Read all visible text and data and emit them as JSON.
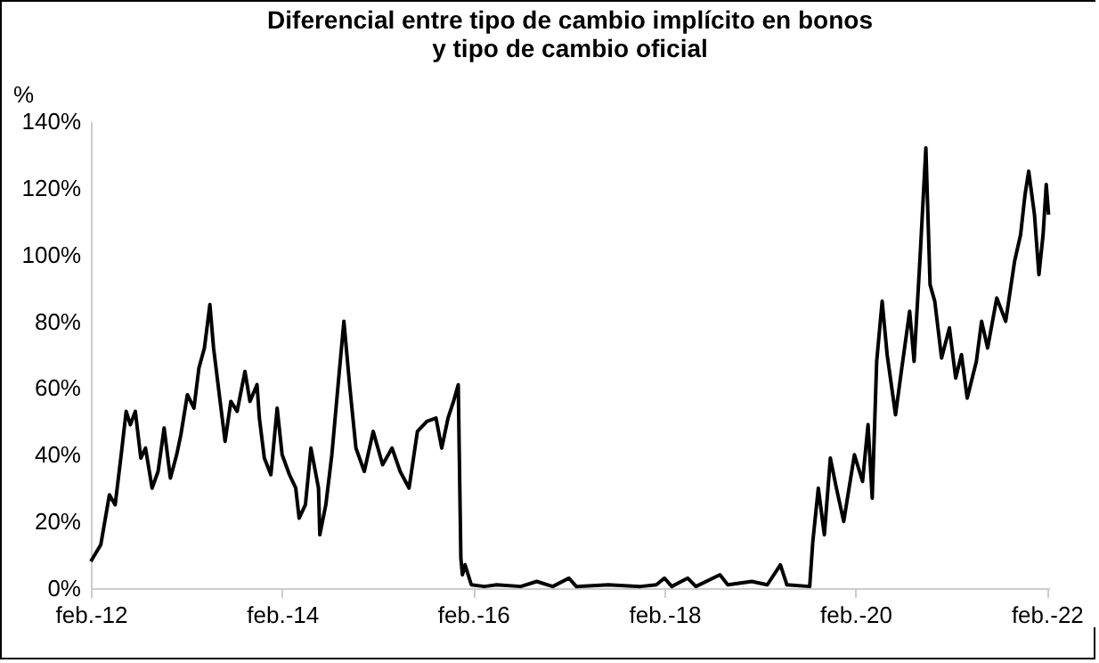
{
  "chart_data": {
    "type": "line",
    "title": "Diferencial entre tipo de cambio implícito en bonos\ny tipo de cambio oficial",
    "ylabel": "%",
    "x": [
      "2012-02-01",
      "2012-03-10",
      "2012-04-12",
      "2012-05-04",
      "2012-05-27",
      "2012-06-15",
      "2012-07-01",
      "2012-07-20",
      "2012-08-10",
      "2012-08-28",
      "2012-09-22",
      "2012-10-15",
      "2012-11-07",
      "2012-12-01",
      "2012-12-25",
      "2013-01-10",
      "2013-02-04",
      "2013-03-01",
      "2013-03-20",
      "2013-04-10",
      "2013-05-01",
      "2013-05-15",
      "2013-06-06",
      "2013-06-28",
      "2013-07-20",
      "2013-08-13",
      "2013-09-12",
      "2013-10-01",
      "2013-10-28",
      "2013-11-06",
      "2013-11-25",
      "2013-12-20",
      "2014-01-13",
      "2014-02-01",
      "2014-03-01",
      "2014-03-25",
      "2014-04-07",
      "2014-05-01",
      "2014-05-22",
      "2014-06-20",
      "2014-06-25",
      "2014-07-18",
      "2014-08-10",
      "2014-09-03",
      "2014-09-25",
      "2014-10-18",
      "2014-11-10",
      "2014-12-12",
      "2015-01-15",
      "2015-02-20",
      "2015-03-28",
      "2015-04-28",
      "2015-06-01",
      "2015-07-03",
      "2015-08-08",
      "2015-09-12",
      "2015-10-04",
      "2015-10-28",
      "2015-11-18",
      "2015-12-06",
      "2015-12-16",
      "2015-12-22",
      "2016-01-01",
      "2016-01-25",
      "2016-03-15",
      "2016-05-01",
      "2016-08-01",
      "2016-10-01",
      "2016-12-01",
      "2017-02-01",
      "2017-03-01",
      "2017-07-01",
      "2017-11-01",
      "2018-01-01",
      "2018-02-01",
      "2018-03-01",
      "2018-05-01",
      "2018-06-01",
      "2018-09-01",
      "2018-10-01",
      "2019-01-01",
      "2019-03-01",
      "2019-04-20",
      "2019-05-15",
      "2019-08-10",
      "2019-08-22",
      "2019-09-12",
      "2019-10-05",
      "2019-10-28",
      "2019-11-20",
      "2019-12-18",
      "2020-01-28",
      "2020-02-28",
      "2020-03-20",
      "2020-04-05",
      "2020-04-22",
      "2020-05-13",
      "2020-06-01",
      "2020-07-03",
      "2020-07-27",
      "2020-08-26",
      "2020-09-12",
      "2020-10-04",
      "2020-10-27",
      "2020-11-12",
      "2020-11-30",
      "2020-12-26",
      "2021-01-25",
      "2021-02-18",
      "2021-03-12",
      "2021-04-03",
      "2021-05-08",
      "2021-05-28",
      "2021-06-20",
      "2021-07-25",
      "2021-08-28",
      "2021-10-01",
      "2021-10-24",
      "2021-11-10",
      "2021-11-24",
      "2021-12-16",
      "2022-01-02",
      "2022-01-18",
      "2022-01-30",
      "2022-02-08"
    ],
    "series": [
      {
        "color": "#000000",
        "values": [
          8,
          13,
          28,
          25,
          40,
          53,
          49,
          53,
          39,
          42,
          30,
          35,
          48,
          33,
          40,
          46,
          58,
          54,
          66,
          72,
          85,
          72,
          58,
          44,
          56,
          53,
          65,
          56,
          61,
          51,
          39,
          34,
          54,
          40,
          34,
          30,
          21,
          25,
          42,
          30,
          16,
          25,
          40,
          61,
          80,
          60,
          42,
          35,
          47,
          37,
          42,
          35,
          30,
          47,
          50,
          51,
          42,
          51,
          56,
          61,
          9,
          4,
          7,
          1,
          0.5,
          1,
          0.5,
          2,
          0.5,
          3,
          0.5,
          1,
          0.5,
          1,
          3,
          0.5,
          3,
          0.5,
          4,
          1,
          2,
          1,
          7,
          1,
          0.5,
          14,
          30,
          16,
          39,
          30,
          20,
          40,
          32,
          49,
          27,
          68,
          86,
          70,
          52,
          66,
          83,
          68,
          98,
          132,
          91,
          86,
          69,
          78,
          63,
          70,
          57,
          68,
          80,
          72,
          87,
          80,
          98,
          106,
          118,
          125,
          112,
          94,
          106,
          121,
          112
        ]
      }
    ],
    "xlim": [
      "2012-02-01",
      "2022-02-10"
    ],
    "xticks": [
      {
        "value": "2012-02-01",
        "label": "feb.-12"
      },
      {
        "value": "2014-02-01",
        "label": "feb.-14"
      },
      {
        "value": "2016-02-01",
        "label": "feb.-16"
      },
      {
        "value": "2018-02-01",
        "label": "feb.-18"
      },
      {
        "value": "2020-02-01",
        "label": "feb.-20"
      },
      {
        "value": "2022-02-01",
        "label": "feb.-22"
      }
    ],
    "ylim": [
      0,
      140
    ],
    "yticks": [
      {
        "value": 0,
        "label": "0%"
      },
      {
        "value": 20,
        "label": "20%"
      },
      {
        "value": 40,
        "label": "40%"
      },
      {
        "value": 60,
        "label": "60%"
      },
      {
        "value": 80,
        "label": "80%"
      },
      {
        "value": 100,
        "label": "100%"
      },
      {
        "value": 120,
        "label": "120%"
      },
      {
        "value": 140,
        "label": "140%"
      }
    ],
    "grid": false,
    "line_style": "solid"
  }
}
